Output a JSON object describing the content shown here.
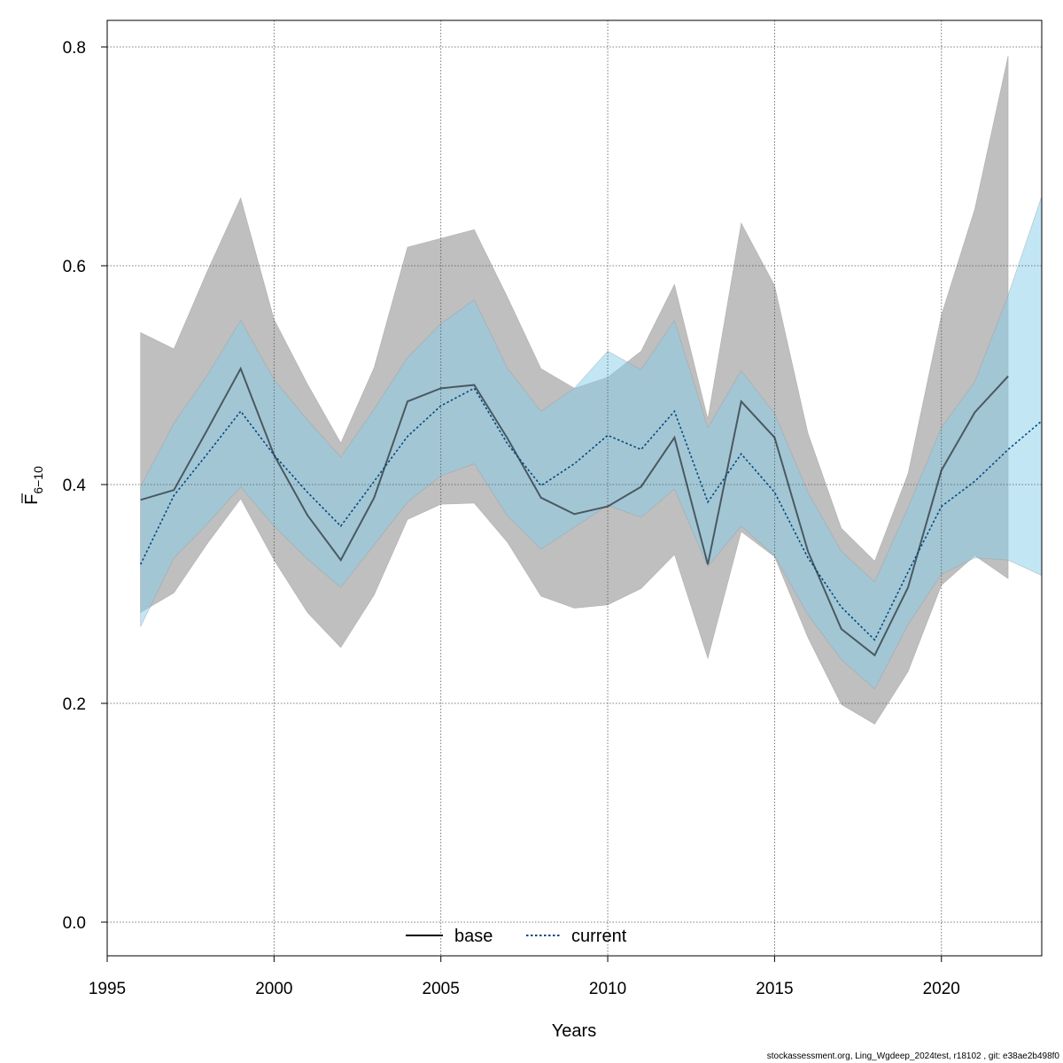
{
  "chart_data": {
    "type": "line",
    "xlabel": "Years",
    "ylabel": {
      "base": "F",
      "sub": "6−10"
    },
    "xlim": [
      1995,
      2023
    ],
    "ylim": [
      0.0,
      0.8
    ],
    "xticks": [
      1995,
      2000,
      2005,
      2010,
      2015,
      2020
    ],
    "xtick_labels": [
      "1995",
      "2000",
      "2005",
      "2010",
      "2015",
      "2020"
    ],
    "yticks": [
      0.0,
      0.2,
      0.4,
      0.6,
      0.8
    ],
    "ytick_labels": [
      "0.0",
      "0.2",
      "0.4",
      "0.6",
      "0.8"
    ],
    "grid": true,
    "legend_position": "bottom-center",
    "series": [
      {
        "name": "base",
        "line_style": "solid",
        "line_color": "#000000",
        "band_color": "#bebebe",
        "x": [
          1996,
          1997,
          1998,
          1999,
          2000,
          2001,
          2002,
          2003,
          2004,
          2005,
          2006,
          2007,
          2008,
          2009,
          2010,
          2011,
          2012,
          2013,
          2014,
          2015,
          2016,
          2017,
          2018,
          2019,
          2020,
          2021,
          2022
        ],
        "y": [
          0.386,
          0.395,
          0.45,
          0.506,
          0.427,
          0.372,
          0.331,
          0.388,
          0.476,
          0.488,
          0.491,
          0.442,
          0.388,
          0.373,
          0.38,
          0.398,
          0.443,
          0.327,
          0.476,
          0.443,
          0.339,
          0.268,
          0.244,
          0.306,
          0.413,
          0.466,
          0.499
        ],
        "lower": [
          0.283,
          0.301,
          0.346,
          0.387,
          0.331,
          0.283,
          0.251,
          0.299,
          0.368,
          0.382,
          0.383,
          0.347,
          0.298,
          0.287,
          0.29,
          0.305,
          0.336,
          0.241,
          0.357,
          0.334,
          0.26,
          0.199,
          0.181,
          0.229,
          0.308,
          0.335,
          0.314
        ],
        "upper": [
          0.539,
          0.524,
          0.595,
          0.662,
          0.551,
          0.492,
          0.438,
          0.507,
          0.617,
          0.625,
          0.633,
          0.571,
          0.506,
          0.488,
          0.498,
          0.522,
          0.583,
          0.46,
          0.639,
          0.582,
          0.447,
          0.36,
          0.33,
          0.41,
          0.555,
          0.652,
          0.792
        ]
      },
      {
        "name": "current",
        "line_style": "dotted",
        "line_color": "#004a7f",
        "band_color": "#87ceeb",
        "x": [
          1996,
          1997,
          1998,
          1999,
          2000,
          2001,
          2002,
          2003,
          2004,
          2005,
          2006,
          2007,
          2008,
          2009,
          2010,
          2011,
          2012,
          2013,
          2014,
          2015,
          2016,
          2017,
          2018,
          2019,
          2020,
          2021,
          2022,
          2023
        ],
        "y": [
          0.327,
          0.39,
          0.428,
          0.467,
          0.427,
          0.393,
          0.362,
          0.403,
          0.444,
          0.472,
          0.488,
          0.437,
          0.399,
          0.419,
          0.445,
          0.432,
          0.467,
          0.384,
          0.428,
          0.393,
          0.333,
          0.288,
          0.258,
          0.32,
          0.38,
          0.403,
          0.432,
          0.458
        ],
        "lower": [
          0.27,
          0.333,
          0.364,
          0.398,
          0.362,
          0.332,
          0.306,
          0.345,
          0.384,
          0.408,
          0.419,
          0.371,
          0.341,
          0.361,
          0.381,
          0.37,
          0.396,
          0.325,
          0.362,
          0.335,
          0.281,
          0.24,
          0.213,
          0.272,
          0.318,
          0.333,
          0.331,
          0.317
        ],
        "upper": [
          0.398,
          0.456,
          0.5,
          0.55,
          0.496,
          0.459,
          0.425,
          0.469,
          0.516,
          0.547,
          0.569,
          0.506,
          0.467,
          0.488,
          0.522,
          0.505,
          0.55,
          0.452,
          0.504,
          0.465,
          0.393,
          0.339,
          0.311,
          0.379,
          0.452,
          0.494,
          0.573,
          0.663
        ]
      }
    ]
  },
  "footer": "stockassessment.org, Ling_Wgdeep_2024test, r18102 , git: e38ae2b498f0"
}
